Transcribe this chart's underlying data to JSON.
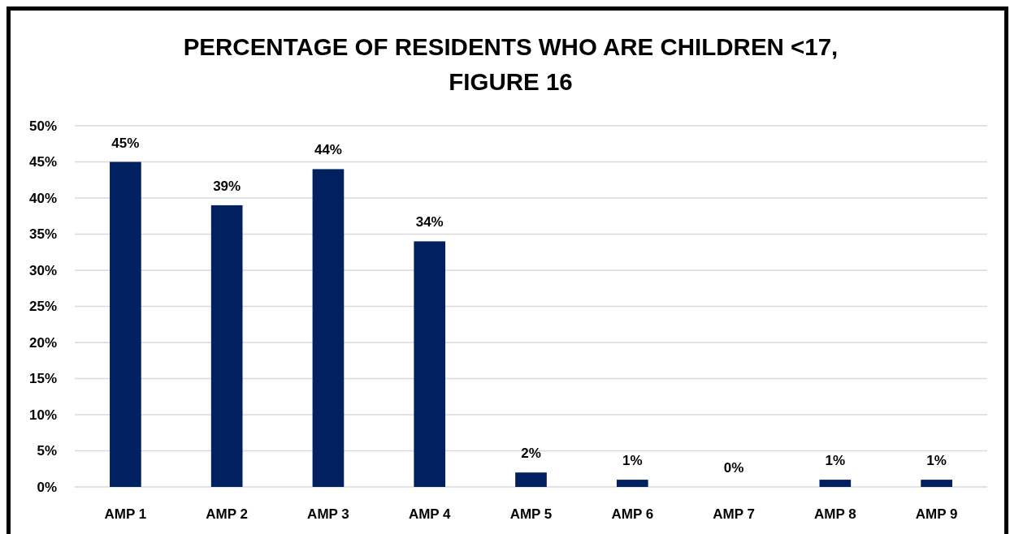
{
  "chart_data": {
    "type": "bar",
    "title": "PERCENTAGE OF RESIDENTS WHO ARE CHILDREN <17,\nFIGURE 16",
    "categories": [
      "AMP 1",
      "AMP 2",
      "AMP 3",
      "AMP 4",
      "AMP 5",
      "AMP 6",
      "AMP 7",
      "AMP 8",
      "AMP 9"
    ],
    "values": [
      45,
      39,
      44,
      34,
      2,
      1,
      0,
      1,
      1
    ],
    "color": "#002060",
    "value_labels": [
      "45%",
      "39%",
      "44%",
      "34%",
      "2%",
      "1%",
      "0%",
      "1%",
      "1%"
    ],
    "ylim": [
      0,
      50
    ],
    "yticks": [
      {
        "value": 0,
        "label": "0%"
      },
      {
        "value": 5,
        "label": "5%"
      },
      {
        "value": 10,
        "label": "10%"
      },
      {
        "value": 15,
        "label": "15%"
      },
      {
        "value": 20,
        "label": "20%"
      },
      {
        "value": 25,
        "label": "25%"
      },
      {
        "value": 30,
        "label": "30%"
      },
      {
        "value": 35,
        "label": "35%"
      },
      {
        "value": 40,
        "label": "40%"
      },
      {
        "value": 45,
        "label": "45%"
      },
      {
        "value": 50,
        "label": "50%"
      }
    ],
    "grid": "y"
  }
}
